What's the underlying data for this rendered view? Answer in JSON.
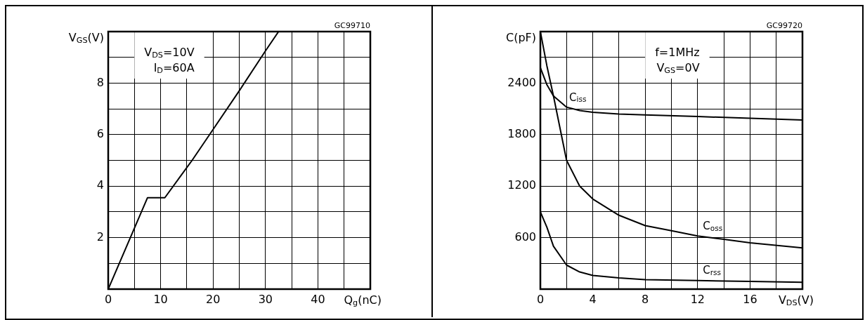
{
  "chart_data": [
    {
      "type": "line",
      "xlabel": "Q$_{g}$(nC)",
      "ylabel": "V$_{GS}$(V)",
      "annotations": [
        "V$_{DS}$=10V",
        "I$_{D}$=60A",
        "GC99710"
      ],
      "series": [
        {
          "color": "#000000",
          "x": [
            0,
            7.5,
            10.8,
            16,
            20,
            25,
            30,
            32.5
          ],
          "values": [
            0,
            3.55,
            3.55,
            5,
            6.2,
            7.7,
            9.25,
            10
          ]
        }
      ],
      "xlim": [
        0,
        50
      ],
      "ylim": [
        0,
        10
      ],
      "xticks": [
        0,
        {
          "value": 5,
          "label": null
        },
        10,
        {
          "value": 15,
          "label": null
        },
        20,
        {
          "value": 25,
          "label": null
        },
        30,
        {
          "value": 35,
          "label": null
        },
        40,
        {
          "value": 45,
          "label": null
        },
        {
          "value": 50,
          "label": null
        }
      ],
      "yticks": [
        {
          "value": 0,
          "label": null
        },
        {
          "value": 1,
          "label": null
        },
        2,
        {
          "value": 3,
          "label": null
        },
        4,
        {
          "value": 5,
          "label": null
        },
        6,
        {
          "value": 7,
          "label": null
        },
        8,
        {
          "value": 9,
          "label": null
        },
        {
          "value": 10,
          "label": null
        }
      ],
      "grid": true,
      "legend": false,
      "marker": "none",
      "line_style": "solid"
    },
    {
      "type": "line",
      "xlabel": "V$_{DS}$(V)",
      "ylabel": "C(pF)",
      "annotations": [
        "f=1MHz",
        "V$_{GS}$=0V",
        "GC99720"
      ],
      "series": [
        {
          "name": "C$_{iss}$",
          "color": "#000000",
          "x": [
            0,
            0.5,
            1,
            2,
            3,
            4,
            6,
            8,
            12,
            16,
            20
          ],
          "values": [
            2580,
            2380,
            2250,
            2120,
            2080,
            2060,
            2040,
            2030,
            2010,
            1990,
            1970
          ]
        },
        {
          "name": "C$_{oss}$",
          "color": "#000000",
          "x": [
            0,
            0.5,
            1,
            2,
            3,
            4,
            6,
            8,
            10,
            12,
            14,
            16,
            20
          ],
          "values": [
            3000,
            2600,
            2250,
            1500,
            1200,
            1050,
            860,
            740,
            680,
            620,
            580,
            540,
            480
          ]
        },
        {
          "name": "C$_{rss}$",
          "color": "#000000",
          "x": [
            0,
            0.5,
            1,
            2,
            3,
            4,
            6,
            8,
            12,
            16,
            20
          ],
          "values": [
            900,
            720,
            500,
            280,
            200,
            160,
            130,
            110,
            100,
            90,
            80
          ]
        }
      ],
      "xlim": [
        0,
        20
      ],
      "ylim": [
        0,
        3000
      ],
      "xticks": [
        0,
        {
          "value": 2,
          "label": null
        },
        4,
        {
          "value": 6,
          "label": null
        },
        8,
        {
          "value": 10,
          "label": null
        },
        12,
        {
          "value": 14,
          "label": null
        },
        16,
        {
          "value": 18,
          "label": null
        },
        {
          "value": 20,
          "label": null
        }
      ],
      "yticks": [
        {
          "value": 0,
          "label": null
        },
        {
          "value": 300,
          "label": null
        },
        600,
        {
          "value": 900,
          "label": null
        },
        1200,
        {
          "value": 1500,
          "label": null
        },
        1800,
        {
          "value": 2100,
          "label": null
        },
        2400,
        {
          "value": 2700,
          "label": null
        },
        {
          "value": 3000,
          "label": null
        }
      ],
      "grid": true,
      "legend": false,
      "marker": "none",
      "line_style": "solid"
    }
  ]
}
